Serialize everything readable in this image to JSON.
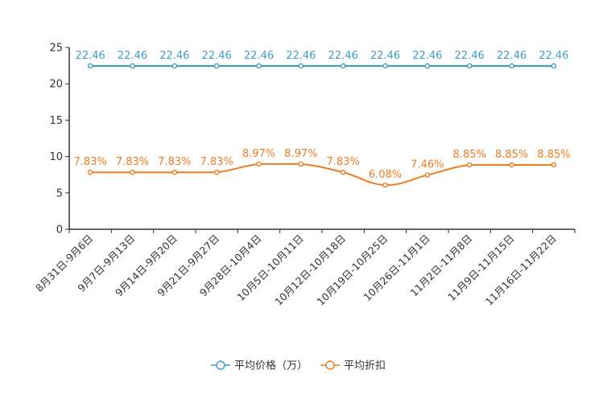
{
  "chart_data": {
    "type": "line",
    "title": "",
    "xlabel": "",
    "ylabel": "",
    "ylim": [
      0,
      25
    ],
    "yticks": [
      0,
      5,
      10,
      15,
      20,
      25
    ],
    "grid": false,
    "legend_position": "bottom-center",
    "categories": [
      "8月31日-9月6日",
      "9月7日-9月13日",
      "9月14日-9月20日",
      "9月21日-9月27日",
      "9月28日-10月4日",
      "10月5日-10月11日",
      "10月12日-10月18日",
      "10月19日-10月25日",
      "10月26日-11月1日",
      "11月2日-11月8日",
      "11月9日-11月15日",
      "11月16日-11月22日"
    ],
    "series": [
      {
        "name": "平均价格（万）",
        "color": "#3c9dcc",
        "smooth": false,
        "values": [
          22.46,
          22.46,
          22.46,
          22.46,
          22.46,
          22.46,
          22.46,
          22.46,
          22.46,
          22.46,
          22.46,
          22.46
        ],
        "labels": [
          "22.46",
          "22.46",
          "22.46",
          "22.46",
          "22.46",
          "22.46",
          "22.46",
          "22.46",
          "22.46",
          "22.46",
          "22.46",
          "22.46"
        ]
      },
      {
        "name": "平均折扣",
        "color": "#f07c20",
        "smooth": true,
        "values": [
          7.83,
          7.83,
          7.83,
          7.83,
          8.97,
          8.97,
          7.83,
          6.08,
          7.46,
          8.85,
          8.85,
          8.85
        ],
        "labels": [
          "7.83%",
          "7.83%",
          "7.83%",
          "7.83%",
          "8.97%",
          "8.97%",
          "7.83%",
          "6.08%",
          "7.46%",
          "8.85%",
          "8.85%",
          "8.85%"
        ]
      }
    ]
  }
}
